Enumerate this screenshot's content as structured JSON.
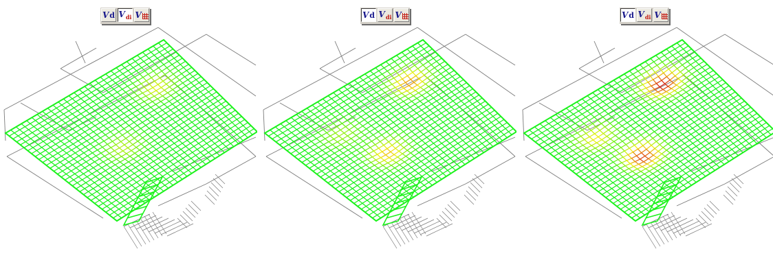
{
  "toolbar": {
    "buttons": [
      {
        "label": "V",
        "suffix": "d",
        "icon": "vd-icon"
      },
      {
        "label": "V",
        "suffix": "di",
        "icon": "vdi-icon"
      },
      {
        "label": "V",
        "suffix": "",
        "icon": "v-grid-icon"
      }
    ]
  },
  "panels": [
    {
      "active_button": 1,
      "hotspots": [
        {
          "u": 0.28,
          "v": 0.22,
          "intensity": 0.45
        },
        {
          "u": 0.55,
          "v": 0.62,
          "intensity": 0.35
        }
      ]
    },
    {
      "active_button": 0,
      "hotspots": [
        {
          "u": 0.22,
          "v": 0.22,
          "intensity": 0.7
        },
        {
          "u": 0.6,
          "v": 0.62,
          "intensity": 0.6
        },
        {
          "u": 0.3,
          "v": 0.72,
          "intensity": 0.3
        }
      ]
    },
    {
      "active_button": 0,
      "hotspots": [
        {
          "u": 0.2,
          "v": 0.25,
          "intensity": 1.0
        },
        {
          "u": 0.6,
          "v": 0.65,
          "intensity": 0.9
        },
        {
          "u": 0.3,
          "v": 0.75,
          "intensity": 0.5
        }
      ]
    }
  ],
  "colors": {
    "mesh_base": "#1cf21c",
    "mesh_mid": "#f2ef12",
    "mesh_hot": "#d81a12",
    "outline": "#7a7a7a",
    "toolbar_bg": "#d4d0c8"
  }
}
